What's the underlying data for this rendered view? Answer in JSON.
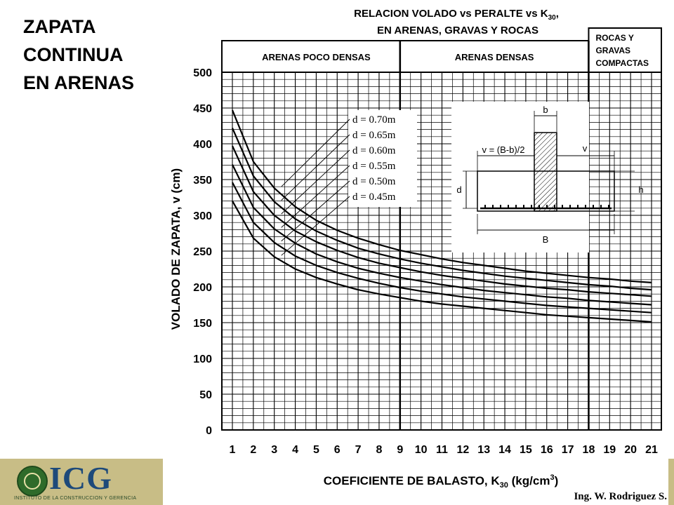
{
  "slide": {
    "title_lines": [
      "ZAPATA",
      "CONTINUA",
      "EN ARENAS"
    ]
  },
  "logo": {
    "text": "ICG",
    "subtitle": "INSTITUTO DE LA CONSTRUCCION Y GERENCIA",
    "emblem_icon": "globe-emblem-icon",
    "background_color": "#c8bd86",
    "text_color": "#1e4a7a"
  },
  "chart_data": {
    "type": "line",
    "title_line1": "RELACION VOLADO vs PERALTE vs K",
    "title_line1_sub": "30",
    "title_line1_end": ",",
    "title_line2": "EN ARENAS, GRAVAS Y ROCAS",
    "ylabel": "VOLADO DE ZAPATA, v (cm)",
    "xlabel_main": "COEFICIENTE DE BALASTO, K",
    "xlabel_sub": "30",
    "xlabel_units": " (kg/cm",
    "xlabel_sup": "3",
    "xlabel_close": ")",
    "author": "Ing. W. Rodriguez S.",
    "xlim": [
      1,
      21
    ],
    "ylim": [
      0,
      500
    ],
    "x_ticks": [
      1,
      2,
      3,
      4,
      5,
      6,
      7,
      8,
      9,
      10,
      11,
      12,
      13,
      14,
      15,
      16,
      17,
      18,
      19,
      20,
      21
    ],
    "y_ticks": [
      0,
      50,
      100,
      150,
      200,
      250,
      300,
      350,
      400,
      450,
      500
    ],
    "grid": true,
    "zones": [
      {
        "label": "ARENAS POCO DENSAS",
        "x_from": 1,
        "x_to": 9
      },
      {
        "label": "ARENAS DENSAS",
        "x_from": 9,
        "x_to": 18
      },
      {
        "label_lines": [
          "ROCAS Y",
          "GRAVAS",
          "COMPACTAS"
        ],
        "x_from": 18,
        "x_to": 21
      }
    ],
    "zone_dividers_x": [
      9,
      18
    ],
    "x": [
      1,
      2,
      3,
      4,
      5,
      6,
      7,
      8,
      9,
      10,
      11,
      12,
      13,
      14,
      15,
      16,
      17,
      18,
      19,
      20,
      21
    ],
    "series": [
      {
        "name": "d = 0.70m",
        "values": [
          447,
          375,
          338,
          312,
          293,
          279,
          268,
          259,
          251,
          245,
          239,
          234,
          230,
          226,
          222,
          219,
          216,
          213,
          211,
          208,
          206
        ]
      },
      {
        "name": "d = 0.65m",
        "values": [
          422,
          355,
          319,
          295,
          278,
          265,
          254,
          246,
          239,
          233,
          228,
          223,
          219,
          215,
          212,
          209,
          206,
          203,
          201,
          198,
          196
        ]
      },
      {
        "name": "d = 0.60m",
        "values": [
          397,
          333,
          300,
          278,
          263,
          251,
          241,
          233,
          227,
          221,
          216,
          212,
          208,
          204,
          201,
          198,
          196,
          193,
          191,
          189,
          187
        ]
      },
      {
        "name": "d = 0.55m",
        "values": [
          371,
          311,
          281,
          261,
          246,
          235,
          226,
          219,
          213,
          208,
          203,
          199,
          195,
          192,
          189,
          186,
          184,
          181,
          179,
          177,
          175
        ]
      },
      {
        "name": "d = 0.50m",
        "values": [
          346,
          290,
          262,
          243,
          230,
          220,
          212,
          205,
          199,
          194,
          190,
          186,
          183,
          180,
          177,
          174,
          172,
          170,
          168,
          166,
          164
        ]
      },
      {
        "name": "d = 0.45m",
        "values": [
          320,
          268,
          242,
          225,
          213,
          204,
          196,
          190,
          185,
          180,
          176,
          173,
          170,
          167,
          164,
          161,
          159,
          157,
          155,
          153,
          151
        ]
      }
    ],
    "inset": {
      "labels": {
        "b": "b",
        "v_formula": "v = (B-b)/2",
        "v": "v",
        "d": "d",
        "h": "h",
        "B": "B"
      }
    }
  }
}
